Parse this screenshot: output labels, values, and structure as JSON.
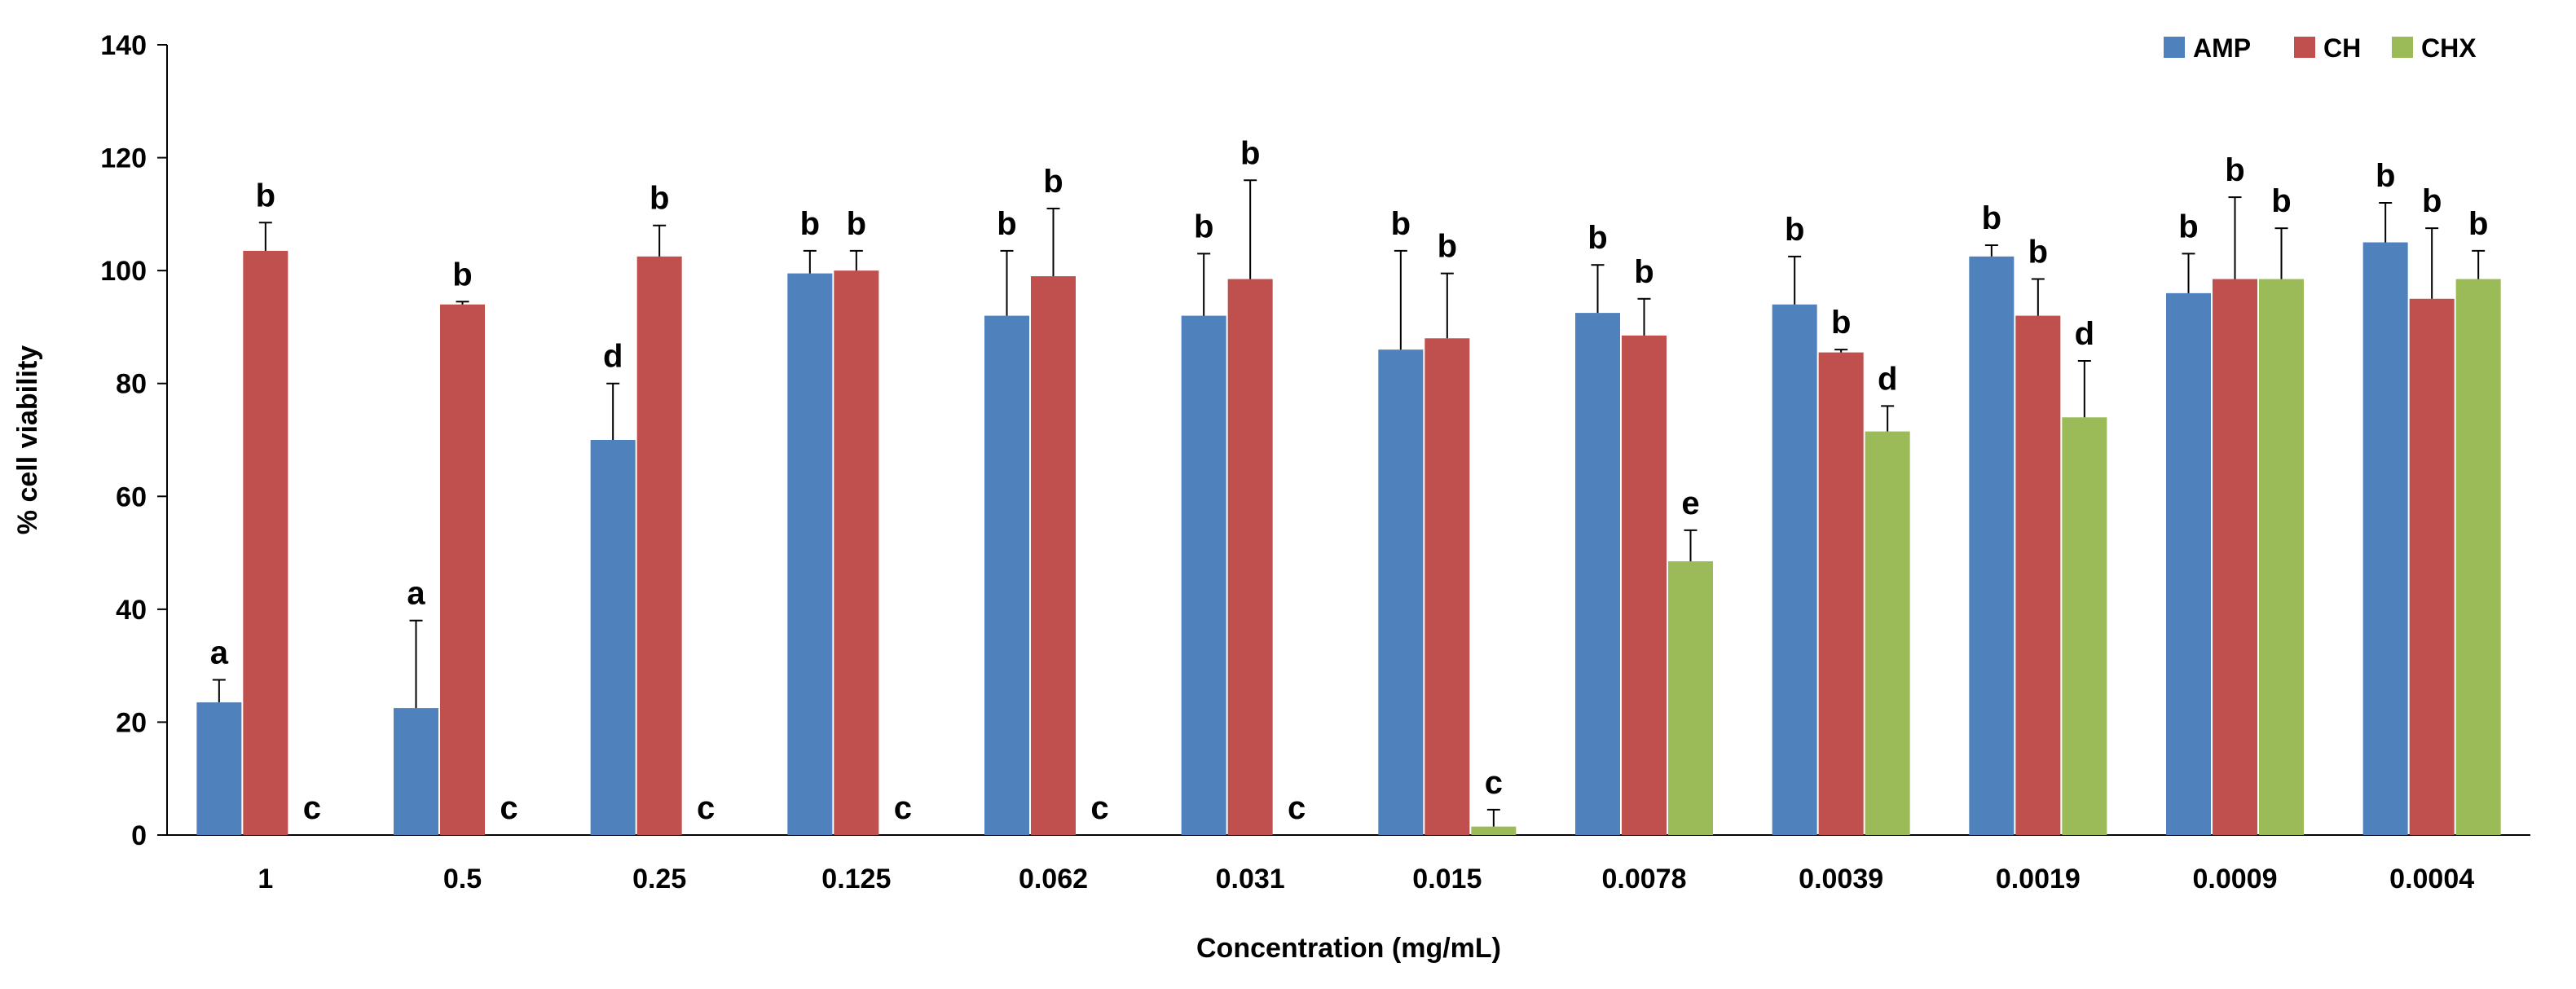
{
  "chart_data": {
    "type": "bar",
    "title": "",
    "xlabel": "Concentration (mg/mL)",
    "ylabel": "% cell viability",
    "ylim": [
      0,
      140
    ],
    "yticks": [
      "0",
      "20",
      "40",
      "60",
      "80",
      "100",
      "120",
      "140"
    ],
    "grid": false,
    "legend_position": "top-right",
    "categories": [
      "1",
      "0.5",
      "0.25",
      "0.125",
      "0.062",
      "0.031",
      "0.015",
      "0.0078",
      "0.0039",
      "0.0019",
      "0.0009",
      "0.0004"
    ],
    "series": [
      {
        "name": "AMP",
        "color": "#4F81BD",
        "values": [
          23.5,
          22.5,
          70,
          99.5,
          92,
          92,
          86,
          92.5,
          94,
          102.5,
          96,
          105
        ],
        "errors": [
          4,
          15.5,
          10,
          4,
          11.5,
          11,
          17.5,
          8.5,
          8.5,
          2,
          7,
          7
        ],
        "letters": [
          "a",
          "a",
          "d",
          "b",
          "b",
          "b",
          "b",
          "b",
          "b",
          "b",
          "b",
          "b"
        ]
      },
      {
        "name": "CH",
        "color": "#C0504D",
        "values": [
          103.5,
          94,
          102.5,
          100,
          99,
          98.5,
          88,
          88.5,
          85.5,
          92,
          98.5,
          95
        ],
        "errors": [
          5,
          0.5,
          5.5,
          3.5,
          12,
          17.5,
          11.5,
          6.5,
          0.5,
          6.5,
          14.5,
          12.5
        ],
        "letters": [
          "b",
          "b",
          "b",
          "b",
          "b",
          "b",
          "b",
          "b",
          "b",
          "b",
          "b",
          "b"
        ]
      },
      {
        "name": "CHX",
        "color": "#9BBB59",
        "values": [
          0,
          0,
          0,
          0,
          0,
          0,
          1.5,
          48.5,
          71.5,
          74,
          98.5,
          98.5
        ],
        "errors": [
          0,
          0,
          0,
          0,
          0,
          0,
          3,
          5.5,
          4.5,
          10,
          9,
          5
        ],
        "letters": [
          "c",
          "c",
          "c",
          "c",
          "c",
          "c",
          "c",
          "e",
          "d",
          "d",
          "b",
          "b"
        ]
      }
    ]
  }
}
